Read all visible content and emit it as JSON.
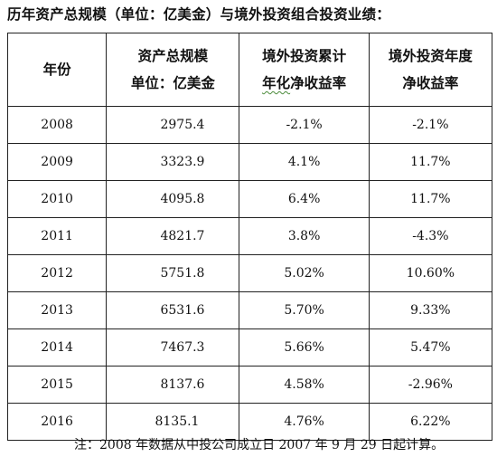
{
  "title": "历年资产总规模（单位：亿美金）与境外投资组合投资业绩：",
  "table": {
    "headers": {
      "year": "年份",
      "assets_line1": "资产总规模",
      "assets_line2": "单位：亿美金",
      "cumulative_line1": "境外投资累计",
      "cumulative_line2_a": "年化",
      "cumulative_line2_b": "净收益率",
      "annual_line1": "境外投资年度",
      "annual_line2": "净收益率"
    },
    "rows": [
      {
        "year": "2008",
        "assets": "2975.4",
        "cumulative": "-2.1%",
        "annual": "-2.1%"
      },
      {
        "year": "2009",
        "assets": "3323.9",
        "cumulative": "4.1%",
        "annual": "11.7%"
      },
      {
        "year": "2010",
        "assets": "4095.8",
        "cumulative": "6.4%",
        "annual": "11.7%"
      },
      {
        "year": "2011",
        "assets": "4821.7",
        "cumulative": "3.8%",
        "annual": "-4.3%"
      },
      {
        "year": "2012",
        "assets": "5751.8",
        "cumulative": "5.02%",
        "annual": "10.60%"
      },
      {
        "year": "2013",
        "assets": "6531.6",
        "cumulative": "5.70%",
        "annual": "9.33%"
      },
      {
        "year": "2014",
        "assets": "7467.3",
        "cumulative": "5.66%",
        "annual": "5.47%"
      },
      {
        "year": "2015",
        "assets": "8137.6",
        "cumulative": "4.58%",
        "annual": "-2.96%"
      },
      {
        "year": "2016",
        "assets": "8135.1",
        "cumulative": "4.76%",
        "annual": "6.22%"
      }
    ]
  },
  "note": "注：2008 年数据从中投公司成立日 2007 年 9 月 29 日起计算。"
}
